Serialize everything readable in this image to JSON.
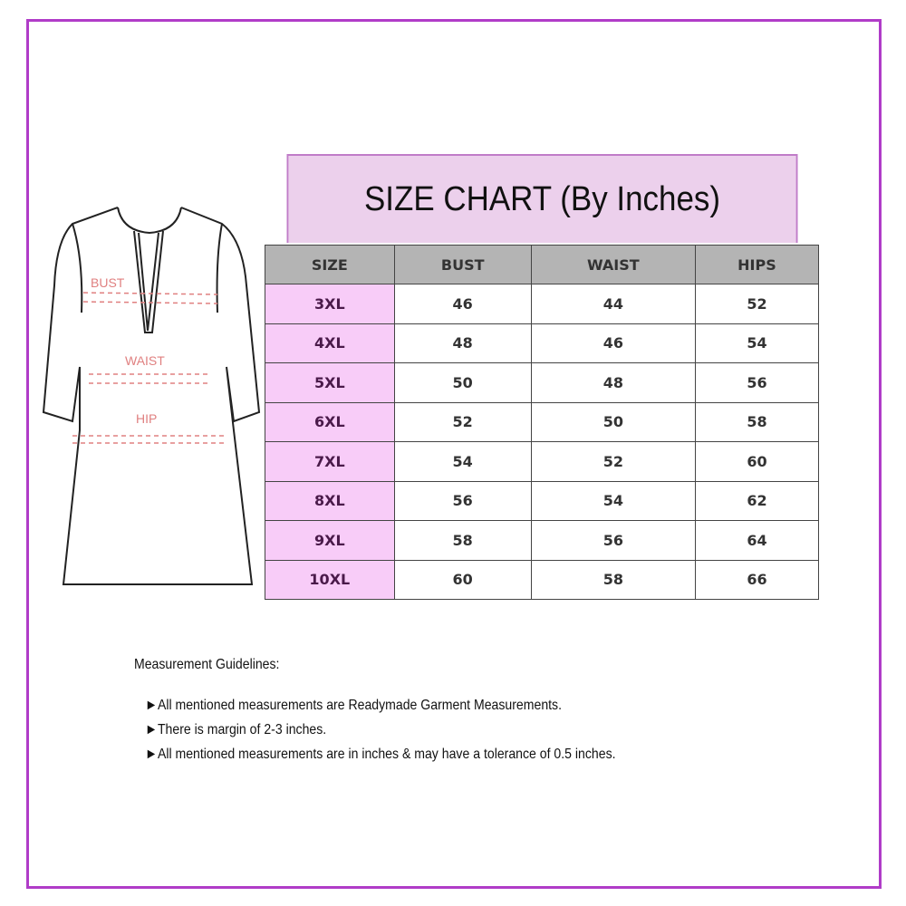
{
  "title": "SIZE CHART (By Inches)",
  "diagram_labels": {
    "bust": "BUST",
    "waist": "WAIST",
    "hip": "HIP"
  },
  "table": {
    "headers": [
      "SIZE",
      "BUST",
      "WAIST",
      "HIPS"
    ],
    "rows": [
      [
        "3XL",
        "46",
        "44",
        "52"
      ],
      [
        "4XL",
        "48",
        "46",
        "54"
      ],
      [
        "5XL",
        "50",
        "48",
        "56"
      ],
      [
        "6XL",
        "52",
        "50",
        "58"
      ],
      [
        "7XL",
        "54",
        "52",
        "60"
      ],
      [
        "8XL",
        "56",
        "54",
        "62"
      ],
      [
        "9XL",
        "58",
        "56",
        "64"
      ],
      [
        "10XL",
        "60",
        "58",
        "66"
      ]
    ]
  },
  "guidelines": {
    "heading": "Measurement Guidelines:",
    "bullet_icon": "right-pointer-arrow",
    "items": [
      "All mentioned measurements are Readymade Garment Measurements.",
      "There is margin of 2-3 inches.",
      "All mentioned measurements are in inches & may have a tolerance of 0.5 inches."
    ]
  },
  "colors": {
    "border": "#b03cc8",
    "title_bg": "#ecd0ec",
    "size_col_bg": "#f8ccf8",
    "header_bg": "#b4b4b4",
    "measure_lines": "#e08080"
  }
}
